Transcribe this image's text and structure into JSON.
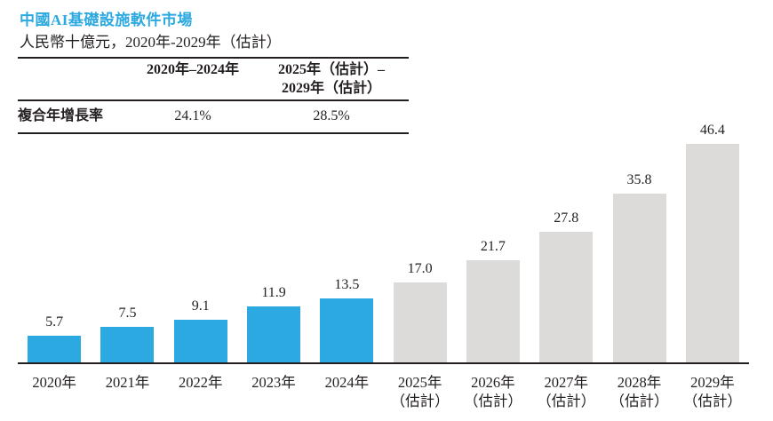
{
  "header": {
    "title": "中國AI基礎設施軟件市場",
    "subtitle": "人民幣十億元，2020年-2029年（估計）"
  },
  "cagr_table": {
    "row_label": "複合年增長率",
    "columns": [
      {
        "label": "2020年–2024年",
        "value": "24.1%"
      },
      {
        "label": "2025年（估計）–\n2029年（估計）",
        "value": "28.5%"
      }
    ]
  },
  "chart_data": {
    "type": "bar",
    "title": "中國AI基礎設施軟件市場",
    "ylabel": "人民幣十億元",
    "xlabel": "",
    "categories": [
      "2020年",
      "2021年",
      "2022年",
      "2023年",
      "2024年",
      "2025年\n（估計）",
      "2026年\n（估計）",
      "2027年\n（估計）",
      "2028年\n（估計）",
      "2029年\n（估計）"
    ],
    "values": [
      5.7,
      7.5,
      9.1,
      11.9,
      13.5,
      17.0,
      21.7,
      27.8,
      35.8,
      46.4
    ],
    "value_labels": [
      "5.7",
      "7.5",
      "9.1",
      "11.9",
      "13.5",
      "17.0",
      "21.7",
      "27.8",
      "35.8",
      "46.4"
    ],
    "bar_types": [
      "actual",
      "actual",
      "actual",
      "actual",
      "actual",
      "estimate",
      "estimate",
      "estimate",
      "estimate",
      "estimate"
    ],
    "ylim": [
      0,
      50
    ],
    "grid": false,
    "legend": "none",
    "cagr_2020_2024": "24.1%",
    "cagr_2025_2029": "28.5%"
  },
  "colors": {
    "actual": "#2BA9E0",
    "estimate": "#DCDBD9",
    "title_blue": "#2BA9E0",
    "text": "#231F20",
    "axis": "#231F20"
  }
}
